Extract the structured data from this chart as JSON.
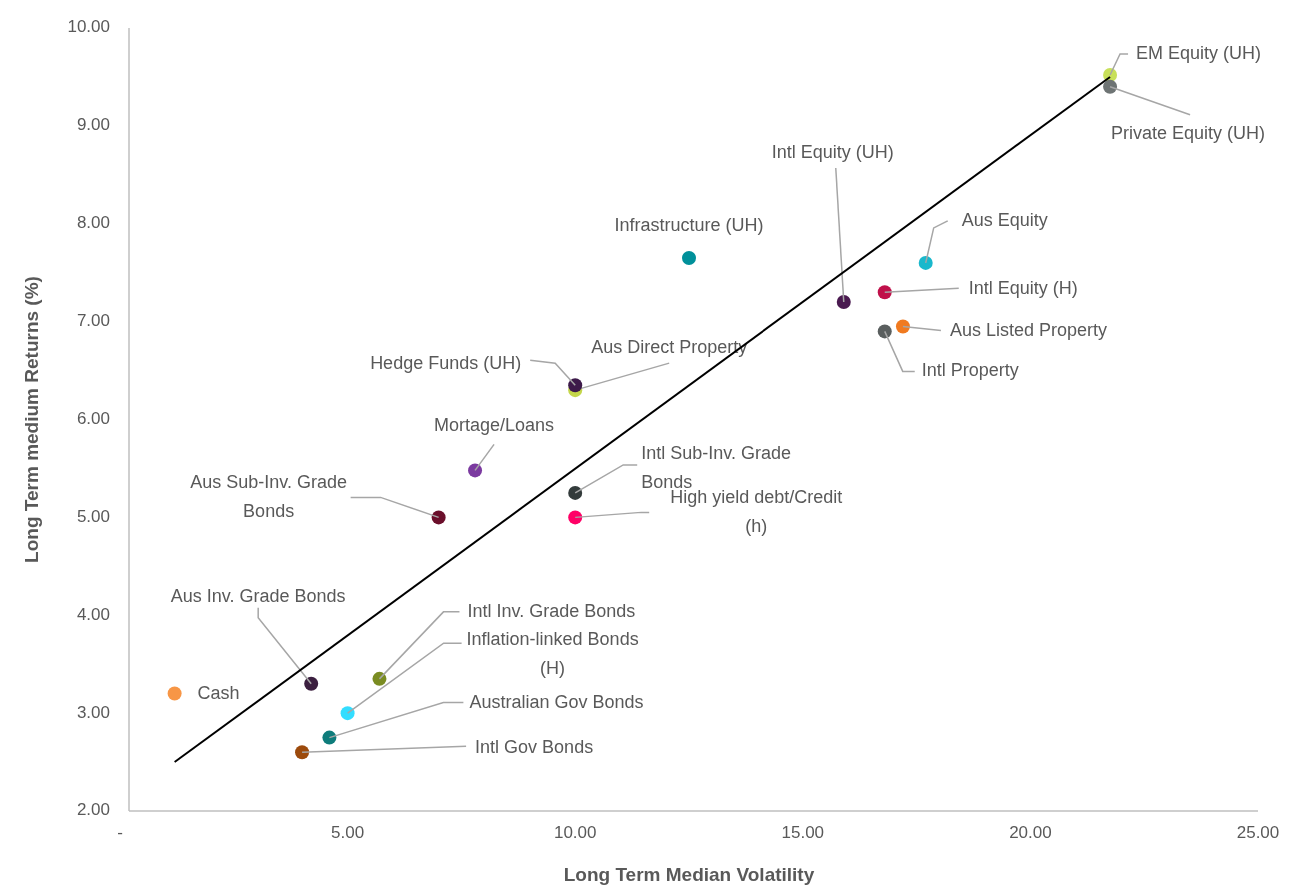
{
  "chart_data": {
    "type": "scatter",
    "xlabel": "Long Term Median Volatility",
    "ylabel": "Long Term medium Returns (%)",
    "xlim": [
      0,
      25
    ],
    "xticks": [
      {
        "value": 0,
        "label": "-"
      },
      {
        "value": 5,
        "label": "5.00"
      },
      {
        "value": 10,
        "label": "10.00"
      },
      {
        "value": 15,
        "label": "15.00"
      },
      {
        "value": 20,
        "label": "20.00"
      },
      {
        "value": 25,
        "label": "25.00"
      }
    ],
    "ylim": [
      2,
      10
    ],
    "yticks": [
      {
        "value": 2,
        "label": "2.00"
      },
      {
        "value": 3,
        "label": "3.00"
      },
      {
        "value": 4,
        "label": "4.00"
      },
      {
        "value": 5,
        "label": "5.00"
      },
      {
        "value": 6,
        "label": "6.00"
      },
      {
        "value": 7,
        "label": "7.00"
      },
      {
        "value": 8,
        "label": "8.00"
      },
      {
        "value": 9,
        "label": "9.00"
      },
      {
        "value": 10,
        "label": "10.00"
      }
    ],
    "grid": false,
    "marker": "circle",
    "series": [
      {
        "name": "Cash",
        "color": "#f79646",
        "x": [
          1.2
        ],
        "values": [
          3.2
        ]
      },
      {
        "name": "Intl Gov Bonds",
        "color": "#9c4a0c",
        "x": [
          4.0
        ],
        "values": [
          2.6
        ]
      },
      {
        "name": "Australian Gov Bonds",
        "color": "#0e7c7b",
        "x": [
          4.6
        ],
        "values": [
          2.75
        ]
      },
      {
        "name": "Inflation-linked Bonds (H)",
        "color": "#33ddff",
        "x": [
          5.0
        ],
        "values": [
          3.0
        ]
      },
      {
        "name": "Intl Inv. Grade Bonds",
        "color": "#7a8c22",
        "x": [
          5.7
        ],
        "values": [
          3.35
        ]
      },
      {
        "name": "Aus Inv. Grade Bonds",
        "color": "#3b1f3f",
        "x": [
          4.2
        ],
        "values": [
          3.3
        ]
      },
      {
        "name": "Aus Sub-Inv. Grade Bonds",
        "color": "#6b0f2b",
        "x": [
          7.0
        ],
        "values": [
          5.0
        ]
      },
      {
        "name": "Mortage/Loans",
        "color": "#7b3aa0",
        "x": [
          7.8
        ],
        "values": [
          5.48
        ]
      },
      {
        "name": "Aus Direct Property",
        "color": "#c4d64a",
        "x": [
          10.0
        ],
        "values": [
          6.3
        ]
      },
      {
        "name": "Hedge Funds (UH)",
        "color": "#3d1a4a",
        "x": [
          10.0
        ],
        "values": [
          6.35
        ]
      },
      {
        "name": "Intl Sub-Inv. Grade Bonds",
        "color": "#333b3b",
        "x": [
          10.0
        ],
        "values": [
          5.25
        ]
      },
      {
        "name": "High yield debt/Credit (h)",
        "color": "#ff0066",
        "x": [
          10.0
        ],
        "values": [
          5.0
        ]
      },
      {
        "name": "Infrastructure (UH)",
        "color": "#00909a",
        "x": [
          12.5
        ],
        "values": [
          7.65
        ]
      },
      {
        "name": "Intl Equity (UH)",
        "color": "#4a1a50",
        "x": [
          15.9
        ],
        "values": [
          7.2
        ]
      },
      {
        "name": "Aus Equity",
        "color": "#1ab8cc",
        "x": [
          17.7
        ],
        "values": [
          7.6
        ]
      },
      {
        "name": "Intl Equity (H)",
        "color": "#c0104a",
        "x": [
          16.8
        ],
        "values": [
          7.3
        ]
      },
      {
        "name": "Aus Listed Property",
        "color": "#f07a20",
        "x": [
          17.2
        ],
        "values": [
          6.95
        ]
      },
      {
        "name": "Intl Property",
        "color": "#5a5f5f",
        "x": [
          16.8
        ],
        "values": [
          6.9
        ]
      },
      {
        "name": "EM Equity (UH)",
        "color": "#c8e05a",
        "x": [
          21.75
        ],
        "values": [
          9.52
        ]
      },
      {
        "name": "Private Equity (UH)",
        "color": "#6e7474",
        "x": [
          21.75
        ],
        "values": [
          9.4
        ]
      },
      {
        "type": "line",
        "marker": "none",
        "color": "#000000",
        "x": [
          1.2,
          21.75
        ],
        "values": [
          2.5,
          9.5
        ]
      }
    ]
  }
}
